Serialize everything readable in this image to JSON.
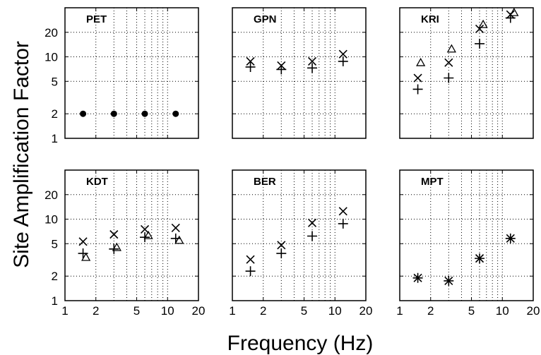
{
  "figure": {
    "ylabel": "Site Amplification Factor",
    "xlabel": "Frequency (Hz)"
  },
  "chart_data": [
    {
      "type": "scatter",
      "title": "PET",
      "xscale": "log",
      "yscale": "log",
      "xlim": [
        1,
        20
      ],
      "ylim": [
        1,
        40
      ],
      "xticks": [
        "1",
        "2",
        "5",
        "10",
        "20"
      ],
      "yticks": [
        "1",
        "2",
        "5",
        "10",
        "20"
      ],
      "grid": "dotted",
      "series": [
        {
          "marker": "dot",
          "x": [
            1.5,
            3,
            6,
            12
          ],
          "y": [
            2,
            2,
            2,
            2
          ]
        }
      ]
    },
    {
      "type": "scatter",
      "title": "GPN",
      "xscale": "log",
      "yscale": "log",
      "xlim": [
        1,
        20
      ],
      "ylim": [
        1,
        40
      ],
      "xticks": [
        "1",
        "2",
        "5",
        "10",
        "20"
      ],
      "yticks": [
        "1",
        "2",
        "5",
        "10",
        "20"
      ],
      "grid": "dotted",
      "series": [
        {
          "marker": "x",
          "x": [
            1.5,
            3,
            6,
            12
          ],
          "y": [
            8.8,
            7.8,
            8.8,
            10.8
          ]
        },
        {
          "marker": "+",
          "x": [
            1.5,
            3,
            6,
            12
          ],
          "y": [
            7.5,
            7.0,
            7.3,
            8.8
          ]
        }
      ]
    },
    {
      "type": "scatter",
      "title": "KRI",
      "xscale": "log",
      "yscale": "log",
      "xlim": [
        1,
        20
      ],
      "ylim": [
        1,
        40
      ],
      "xticks": [
        "1",
        "2",
        "5",
        "10",
        "20"
      ],
      "yticks": [
        "1",
        "2",
        "5",
        "10",
        "20"
      ],
      "grid": "dotted",
      "series": [
        {
          "marker": "x",
          "x": [
            1.5,
            3,
            6,
            12
          ],
          "y": [
            5.5,
            8.5,
            22,
            33
          ]
        },
        {
          "marker": "+",
          "x": [
            1.5,
            3,
            6,
            12
          ],
          "y": [
            4.0,
            5.5,
            14.5,
            30
          ]
        },
        {
          "marker": "triangle",
          "x": [
            1.6,
            3.2,
            6.5,
            13
          ],
          "y": [
            8.5,
            12.5,
            25,
            35
          ]
        }
      ]
    },
    {
      "type": "scatter",
      "title": "KDT",
      "xscale": "log",
      "yscale": "log",
      "xlim": [
        1,
        20
      ],
      "ylim": [
        1,
        40
      ],
      "xticks": [
        "1",
        "2",
        "5",
        "10",
        "20"
      ],
      "yticks": [
        "1",
        "2",
        "5",
        "10",
        "20"
      ],
      "grid": "dotted",
      "series": [
        {
          "marker": "x",
          "x": [
            1.5,
            3,
            6,
            12
          ],
          "y": [
            5.3,
            6.5,
            7.5,
            7.8
          ]
        },
        {
          "marker": "+",
          "x": [
            1.5,
            3,
            6,
            12
          ],
          "y": [
            3.8,
            4.3,
            6.0,
            5.8
          ]
        },
        {
          "marker": "triangle",
          "x": [
            1.6,
            3.2,
            6.5,
            13
          ],
          "y": [
            3.4,
            4.5,
            6.3,
            5.5
          ]
        }
      ]
    },
    {
      "type": "scatter",
      "title": "BER",
      "xscale": "log",
      "yscale": "log",
      "xlim": [
        1,
        20
      ],
      "ylim": [
        1,
        40
      ],
      "xticks": [
        "1",
        "2",
        "5",
        "10",
        "20"
      ],
      "yticks": [
        "1",
        "2",
        "5",
        "10",
        "20"
      ],
      "grid": "dotted",
      "series": [
        {
          "marker": "x",
          "x": [
            1.5,
            3,
            6,
            12
          ],
          "y": [
            3.2,
            4.8,
            9.0,
            12.5
          ]
        },
        {
          "marker": "+",
          "x": [
            1.5,
            3,
            6,
            12
          ],
          "y": [
            2.3,
            3.8,
            6.2,
            8.8
          ]
        }
      ]
    },
    {
      "type": "scatter",
      "title": "MPT",
      "xscale": "log",
      "yscale": "log",
      "xlim": [
        1,
        20
      ],
      "ylim": [
        1,
        40
      ],
      "xticks": [
        "1",
        "2",
        "5",
        "10",
        "20"
      ],
      "yticks": [
        "1",
        "2",
        "5",
        "10",
        "20"
      ],
      "grid": "dotted",
      "series": [
        {
          "marker": "x",
          "x": [
            1.5,
            3,
            6,
            12
          ],
          "y": [
            1.9,
            1.75,
            3.3,
            5.8
          ]
        },
        {
          "marker": "+",
          "x": [
            1.5,
            3,
            6,
            12
          ],
          "y": [
            1.9,
            1.75,
            3.3,
            5.8
          ]
        }
      ]
    }
  ]
}
